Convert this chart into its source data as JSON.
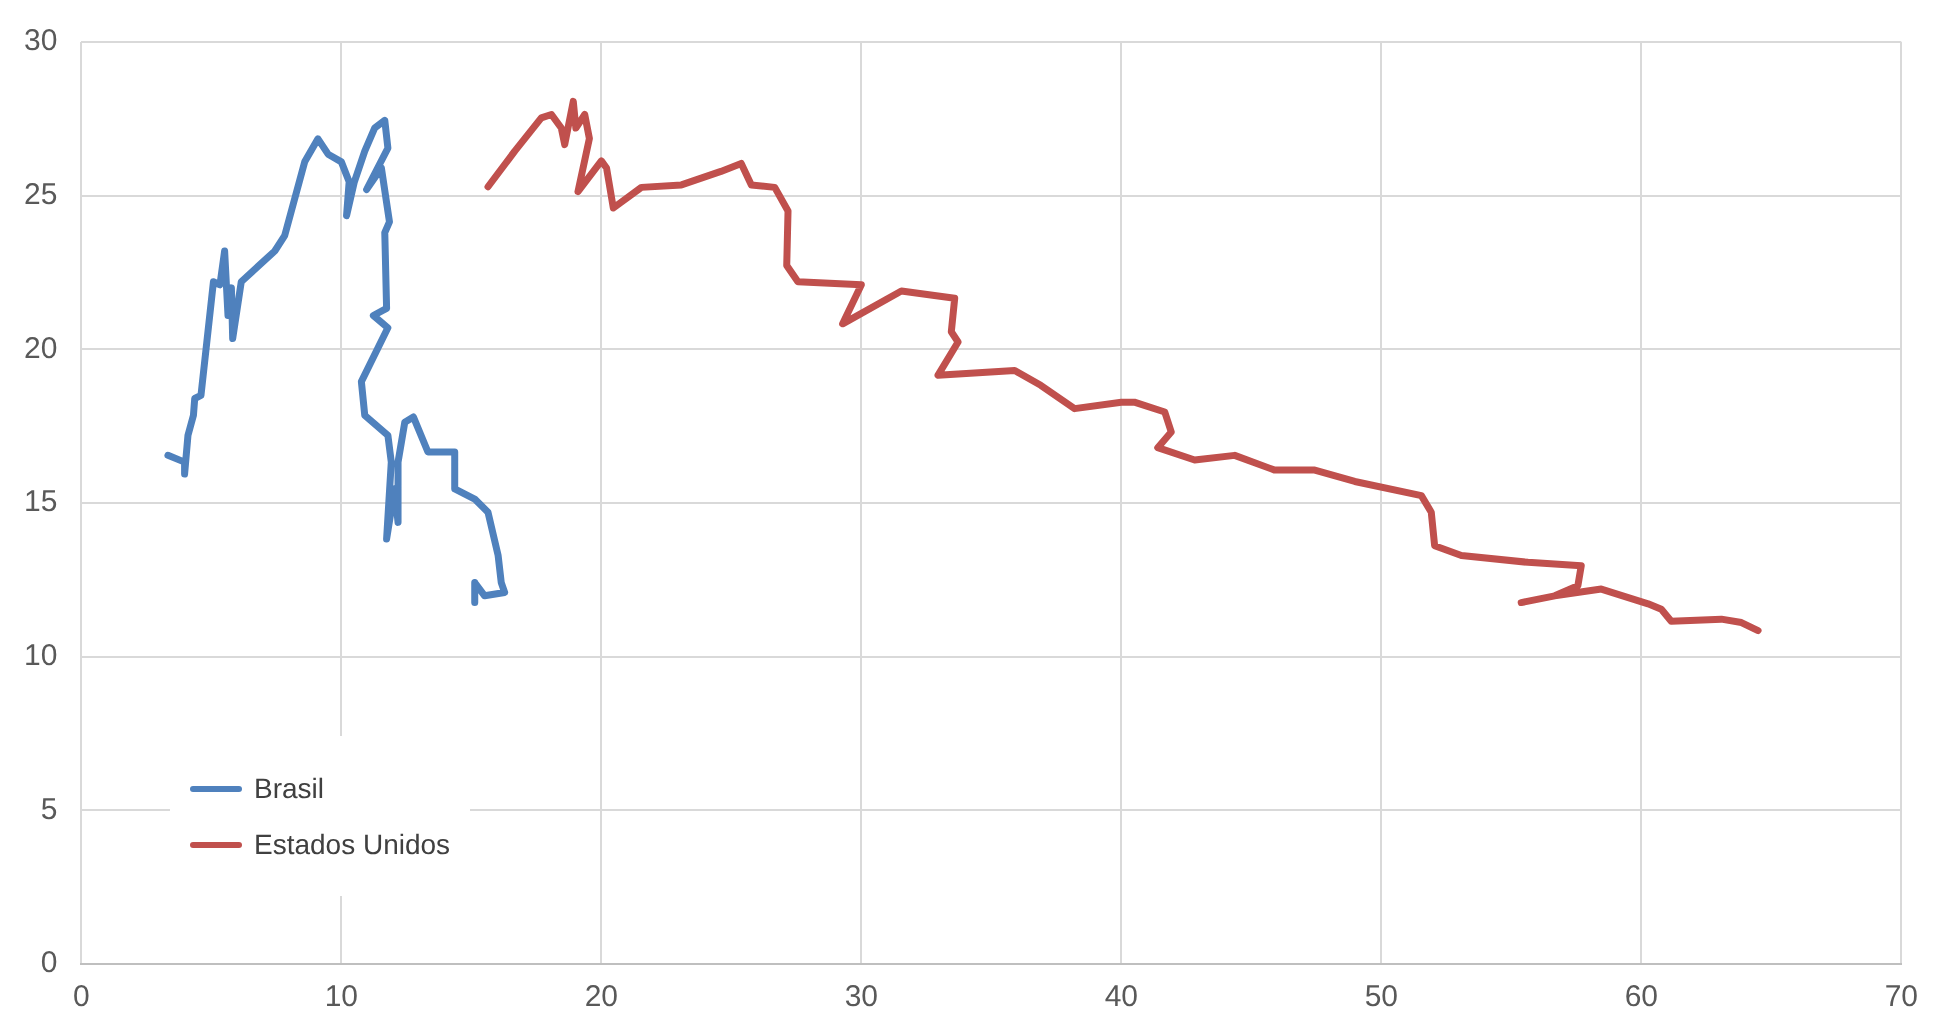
{
  "chart_data": {
    "type": "line",
    "xlim": [
      0,
      70
    ],
    "xticks": [
      0,
      10,
      20,
      30,
      40,
      50,
      60,
      70
    ],
    "ylim": [
      0,
      30
    ],
    "yticks": [
      0,
      5,
      10,
      15,
      20,
      25,
      30
    ],
    "grid": true,
    "legend": "bottom left",
    "marker": "none",
    "line_style": "solid",
    "series": [
      {
        "name": "Brasil",
        "color": "#4f81bd",
        "x": [
          3.33,
          3.97,
          3.97,
          4.1,
          4.31,
          4.36,
          4.6,
          5.08,
          5.33,
          5.51,
          5.64,
          5.77,
          5.82,
          6.15,
          7.44,
          7.82,
          8.59,
          9.1,
          9.49,
          10.0,
          10.3,
          10.2,
          10.5,
          10.9,
          11.28,
          11.67,
          11.79,
          10.97,
          11.54,
          11.85,
          11.67,
          11.74,
          11.23,
          11.79,
          10.77,
          10.9,
          11.79,
          11.92,
          11.74,
          12.05,
          12.18,
          12.18,
          12.44,
          12.77,
          13.33,
          14.36,
          14.36,
          15.13,
          15.64,
          16.03,
          16.15,
          16.28,
          15.51,
          15.13,
          15.13
        ],
        "values": [
          16.55,
          16.33,
          15.94,
          17.2,
          17.85,
          18.4,
          18.5,
          22.2,
          22.1,
          23.2,
          21.1,
          22.0,
          20.35,
          22.2,
          23.2,
          23.7,
          26.1,
          26.85,
          26.35,
          26.1,
          25.45,
          24.35,
          25.45,
          26.45,
          27.2,
          27.45,
          26.55,
          25.2,
          25.9,
          24.15,
          23.8,
          21.33,
          21.1,
          20.7,
          18.95,
          17.85,
          17.2,
          16.33,
          13.83,
          15.46,
          14.37,
          16.33,
          17.63,
          17.8,
          16.66,
          16.66,
          15.46,
          15.13,
          14.7,
          13.29,
          12.41,
          12.09,
          11.98,
          12.41,
          11.76
        ]
      },
      {
        "name": "Estados Unidos",
        "color": "#c0504d",
        "x": [
          15.64,
          16.67,
          17.69,
          18.08,
          18.46,
          18.59,
          18.92,
          19.02,
          19.36,
          19.54,
          19.1,
          20.0,
          20.2,
          20.46,
          21.54,
          23.08,
          24.6,
          25.38,
          25.77,
          26.67,
          27.18,
          27.13,
          27.56,
          30.0,
          29.28,
          31.54,
          33.59,
          33.46,
          33.72,
          32.95,
          35.9,
          36.9,
          38.2,
          40.0,
          40.5,
          41.67,
          41.92,
          41.4,
          42.82,
          44.36,
          45.9,
          47.44,
          48.98,
          51.54,
          51.92,
          52.05,
          53.08,
          55.64,
          57.69,
          57.56,
          56.67,
          55.38,
          56.67,
          58.46,
          60.26,
          60.77,
          61.15,
          63.08,
          63.85,
          64.49
        ],
        "values": [
          25.29,
          26.45,
          27.53,
          27.64,
          27.2,
          26.66,
          28.07,
          27.2,
          27.64,
          26.86,
          25.13,
          26.13,
          25.9,
          24.6,
          25.27,
          25.35,
          25.79,
          26.05,
          25.35,
          25.27,
          24.5,
          22.73,
          22.2,
          22.1,
          20.83,
          21.9,
          21.66,
          20.57,
          20.24,
          19.16,
          19.31,
          18.83,
          18.07,
          18.28,
          18.28,
          17.96,
          17.31,
          16.8,
          16.4,
          16.55,
          16.07,
          16.07,
          15.7,
          15.24,
          14.7,
          13.61,
          13.29,
          13.07,
          12.96,
          12.31,
          11.98,
          11.76,
          11.98,
          12.2,
          11.72,
          11.54,
          11.15,
          11.22,
          11.11,
          10.85
        ]
      }
    ]
  }
}
